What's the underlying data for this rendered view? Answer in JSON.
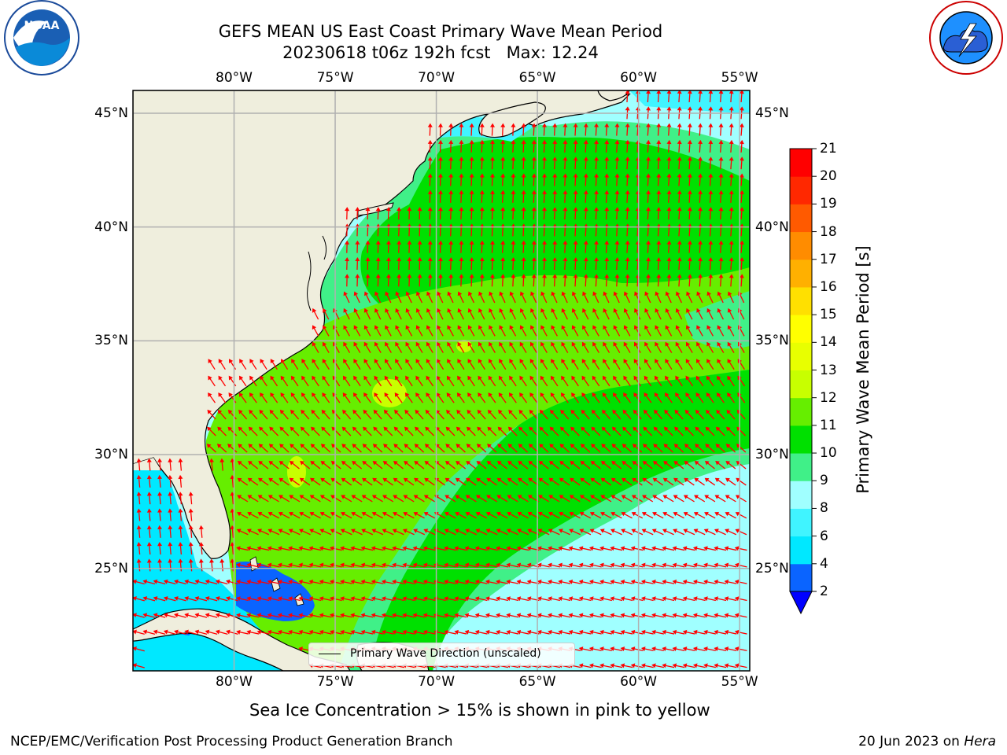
{
  "header": {
    "title_line1": "GEFS MEAN US East Coast Primary Wave Mean Period",
    "title_line2": "20230618 t06z 192h fcst   Max: 12.24"
  },
  "chart_data": {
    "type": "heatmap",
    "title": "GEFS MEAN US East Coast Primary Wave Mean Period",
    "subtitle": "20230618 t06z 192h fcst   Max: 12.24",
    "projection": "plate-carree map",
    "lon_range": [
      -85,
      -54.5
    ],
    "lat_range": [
      20.5,
      46
    ],
    "lon_ticks": [
      "80°W",
      "75°W",
      "70°W",
      "65°W",
      "60°W",
      "55°W"
    ],
    "lon_tick_values": [
      -80,
      -75,
      -70,
      -65,
      -60,
      -55
    ],
    "lat_ticks": [
      "45°N",
      "40°N",
      "35°N",
      "30°N",
      "25°N"
    ],
    "lat_tick_values": [
      45,
      40,
      35,
      30,
      25
    ],
    "grid": true,
    "max_value": 12.24,
    "colorbar": {
      "label": "Primary Wave Mean Period [s]",
      "levels": [
        2,
        4,
        6,
        8,
        9,
        10,
        11,
        12,
        13,
        14,
        15,
        16,
        17,
        18,
        19,
        20,
        21
      ],
      "colors": [
        "#0a64ff",
        "#00e8ff",
        "#40f4ff",
        "#a0ffff",
        "#40f088",
        "#00e000",
        "#66ee00",
        "#c8ff00",
        "#e8ff00",
        "#ffff00",
        "#ffe000",
        "#ffb000",
        "#ff8c00",
        "#ff5a00",
        "#ff2800",
        "#ff0000"
      ],
      "under_color": "#0000ff",
      "extend": "min"
    },
    "regions": [
      {
        "value_range": "10-11",
        "color": "#00e000",
        "description_free": true
      }
    ],
    "legend": {
      "entry": "Primary Wave Direction (unscaled)",
      "placement": "bottom-center"
    },
    "arrow_color": "#ff0000",
    "land_color": "#efeedd"
  },
  "footer": {
    "note": "Sea Ice Concentration > 15% is shown in pink to yellow",
    "left": "NCEP/EMC/Verification Post Processing Product Generation Branch",
    "right_date": "20 Jun 2023 on ",
    "right_host": "Hera"
  },
  "logos": {
    "left": "noaa-logo",
    "right": "nws-logo"
  }
}
